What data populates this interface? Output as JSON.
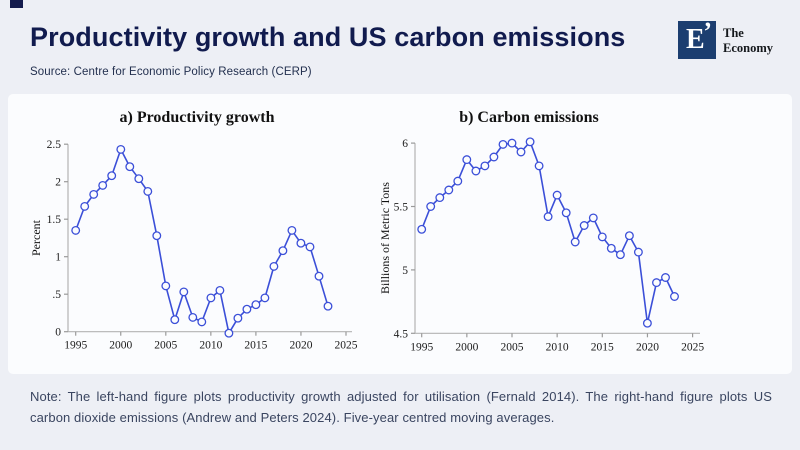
{
  "page": {
    "background": "#edeff5",
    "accent_navy": "#141b4d"
  },
  "header": {
    "title": "Productivity growth and US carbon emissions",
    "source": "Source: Centre for Economic Policy Research (CERP)"
  },
  "logo": {
    "mark_letter": "E",
    "mark_quote": "’",
    "name_line1": "The",
    "name_line2": "Economy",
    "square_color": "#1c3e70"
  },
  "note": "Note: The left-hand figure plots productivity growth adjusted for utilisation (Fernald 2014). The right-hand figure plots US carbon dioxide emissions (Andrew and Peters 2024). Five-year centred moving averages.",
  "style": {
    "line_color": "#3b4fd8",
    "marker_fill": "#fbfcfe",
    "axis_color": "#b3b3b3",
    "tick_color": "#9a9a9a",
    "tick_label_color": "#1c1c1c",
    "chart_title_color": "#111111"
  },
  "chart_data": [
    {
      "type": "line",
      "title": "a) Productivity growth",
      "xlabel": "",
      "ylabel": "Percent",
      "x": [
        1995,
        1996,
        1997,
        1998,
        1999,
        2000,
        2001,
        2002,
        2003,
        2004,
        2005,
        2006,
        2007,
        2008,
        2009,
        2010,
        2011,
        2012,
        2013,
        2014,
        2015,
        2016,
        2017,
        2018,
        2019,
        2020,
        2021,
        2022,
        2023
      ],
      "values": [
        1.35,
        1.67,
        1.83,
        1.95,
        2.08,
        2.43,
        2.2,
        2.04,
        1.87,
        1.28,
        0.61,
        0.16,
        0.53,
        0.19,
        0.13,
        0.45,
        0.55,
        -0.02,
        0.18,
        0.3,
        0.36,
        0.45,
        0.87,
        1.08,
        1.35,
        1.18,
        1.13,
        0.74,
        0.34
      ],
      "x_ticks": [
        1995,
        2000,
        2005,
        2010,
        2015,
        2020,
        2025
      ],
      "y_ticks": [
        0,
        0.5,
        1,
        1.5,
        2,
        2.5
      ],
      "y_tick_labels": [
        "0",
        ".5",
        "1",
        "1.5",
        "2",
        "2.5"
      ],
      "xlim": [
        1994,
        2026
      ],
      "ylim": [
        0,
        2.5
      ],
      "marker": "open-circle",
      "grid": false,
      "legend": null
    },
    {
      "type": "line",
      "title": "b) Carbon emissions",
      "xlabel": "",
      "ylabel": "Billions of Metric Tons",
      "x": [
        1995,
        1996,
        1997,
        1998,
        1999,
        2000,
        2001,
        2002,
        2003,
        2004,
        2005,
        2006,
        2007,
        2008,
        2009,
        2010,
        2011,
        2012,
        2013,
        2014,
        2015,
        2016,
        2017,
        2018,
        2019,
        2020,
        2021,
        2022,
        2023
      ],
      "values": [
        5.32,
        5.5,
        5.57,
        5.63,
        5.7,
        5.87,
        5.78,
        5.82,
        5.89,
        5.99,
        6.0,
        5.93,
        6.01,
        5.82,
        5.42,
        5.59,
        5.45,
        5.22,
        5.35,
        5.41,
        5.26,
        5.17,
        5.12,
        5.27,
        5.14,
        4.58,
        4.9,
        4.94,
        4.79
      ],
      "x_ticks": [
        1995,
        2000,
        2005,
        2010,
        2015,
        2020,
        2025
      ],
      "y_ticks": [
        4.5,
        5,
        5.5,
        6
      ],
      "y_tick_labels": [
        "4.5",
        "5",
        "5.5",
        "6"
      ],
      "xlim": [
        1994,
        2026
      ],
      "ylim": [
        4.5,
        6.05
      ],
      "marker": "open-circle",
      "grid": false,
      "legend": null
    }
  ]
}
